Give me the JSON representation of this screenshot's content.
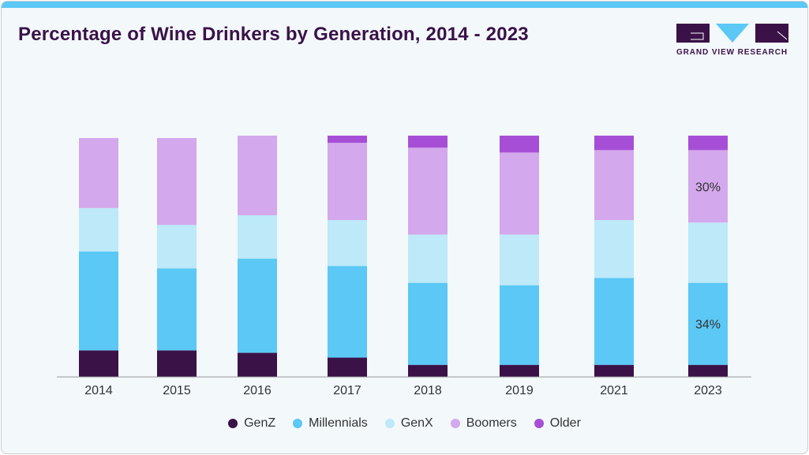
{
  "title": "Percentage of Wine Drinkers by Generation, 2014 - 2023",
  "logo": {
    "text": "GRAND VIEW RESEARCH"
  },
  "chart_data": {
    "type": "bar",
    "stacked": true,
    "title": "Percentage of Wine Drinkers by Generation, 2014 - 2023",
    "xlabel": "",
    "ylabel": "",
    "ylim": [
      0,
      100
    ],
    "categories": [
      "2014",
      "2015",
      "2016",
      "2017",
      "2018",
      "2019",
      "2021",
      "2023"
    ],
    "series": [
      {
        "name": "GenZ",
        "color": "#3a1248",
        "values": [
          11,
          11,
          10,
          8,
          5,
          5,
          5,
          5
        ]
      },
      {
        "name": "Millennials",
        "color": "#5bc8f5",
        "values": [
          41,
          34,
          39,
          38,
          34,
          33,
          36,
          34
        ]
      },
      {
        "name": "GenX",
        "color": "#bde9f9",
        "values": [
          18,
          18,
          18,
          19,
          20,
          21,
          24,
          25
        ]
      },
      {
        "name": "Boomers",
        "color": "#d4a8ec",
        "values": [
          29,
          36,
          33,
          32,
          36,
          34,
          29,
          30
        ]
      },
      {
        "name": "Older",
        "color": "#a64fd6",
        "values": [
          0,
          0,
          0,
          3,
          5,
          7,
          6,
          6
        ]
      }
    ],
    "annotations": [
      {
        "category": "2023",
        "series": "Millennials",
        "text": "34%"
      },
      {
        "category": "2023",
        "series": "Boomers",
        "text": "30%"
      }
    ],
    "legend": "bottom",
    "grid": false
  }
}
